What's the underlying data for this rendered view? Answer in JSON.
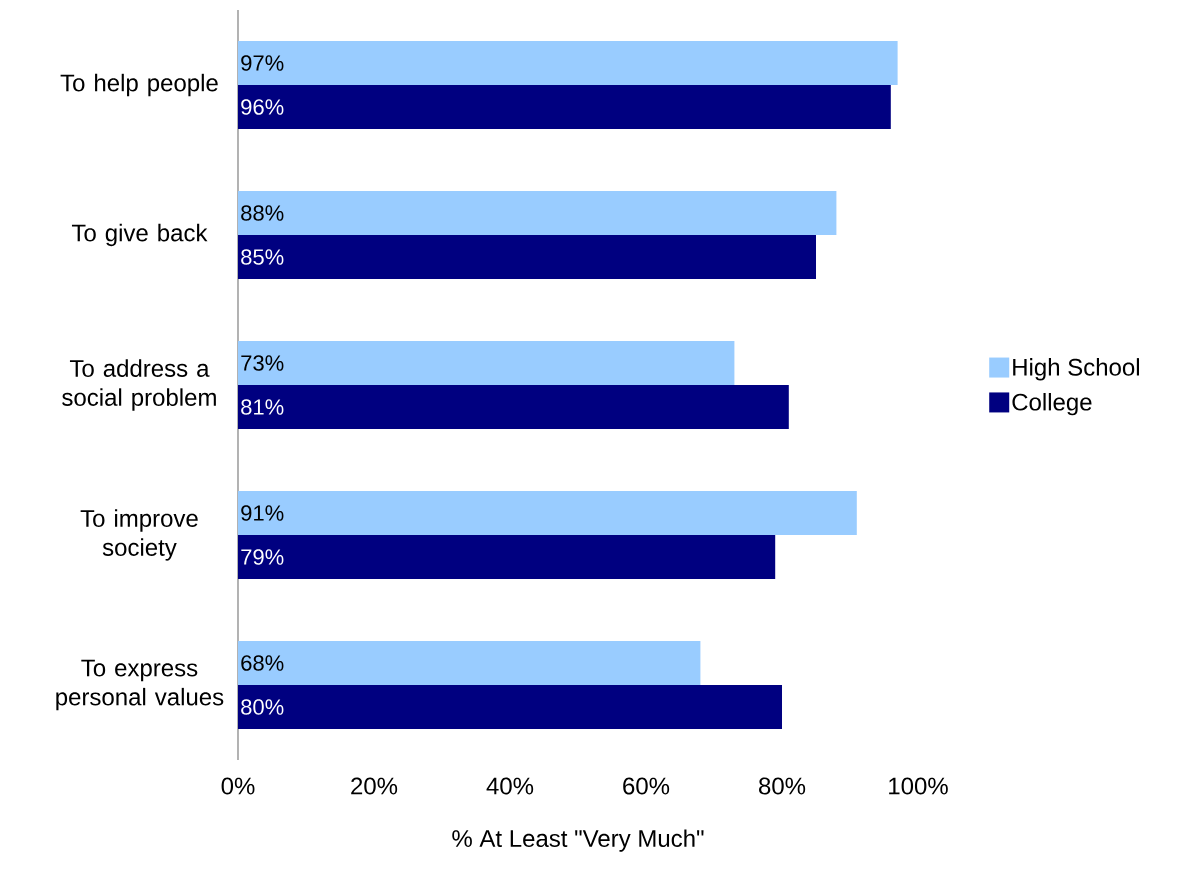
{
  "chart_data": {
    "type": "bar",
    "orientation": "horizontal",
    "categories": [
      "To help people",
      "To give back",
      "To address a social problem",
      "To improve society",
      "To express personal values"
    ],
    "series": [
      {
        "name": "High School",
        "color": "#99ccff",
        "values": [
          97,
          88,
          73,
          91,
          68
        ],
        "value_labels": [
          "97%",
          "88%",
          "73%",
          "91%",
          "68%"
        ]
      },
      {
        "name": "College",
        "color": "#000080",
        "values": [
          96,
          85,
          81,
          79,
          80
        ],
        "value_labels": [
          "96%",
          "85%",
          "81%",
          "79%",
          "80%"
        ]
      }
    ],
    "xlabel": "% At Least \"Very Much\"",
    "xlim": [
      0,
      100
    ],
    "xticks": [
      {
        "value": 0,
        "label": "0%"
      },
      {
        "value": 20,
        "label": "20%"
      },
      {
        "value": 40,
        "label": "40%"
      },
      {
        "value": 60,
        "label": "60%"
      },
      {
        "value": 80,
        "label": "80%"
      },
      {
        "value": 100,
        "label": "100%"
      }
    ],
    "legend": "right",
    "grid": false
  }
}
